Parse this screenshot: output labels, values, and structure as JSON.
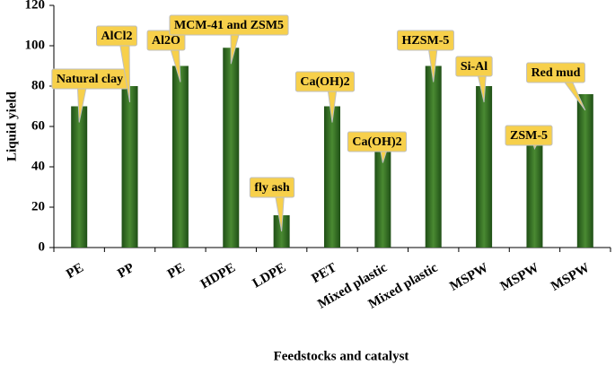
{
  "chart_data": {
    "type": "bar",
    "y_label": "Liquid yield",
    "x_label": "Feedstocks and catalyst",
    "categories": [
      "PE",
      "PP",
      "PE",
      "HDPE",
      "LDPE",
      "PET",
      "Mixed plastic",
      "Mixed plastic",
      "MSPW",
      "MSPW",
      "MSPW"
    ],
    "values": [
      70,
      80,
      90,
      99,
      16,
      70,
      50,
      90,
      80,
      57,
      76
    ],
    "annotations": [
      "Natural clay",
      "AlCl2",
      "Al2O",
      "MCM-41 and ZSM5",
      "fly ash",
      "Ca(OH)2",
      "Ca(OH)2",
      "HZSM-5",
      "Si-Al",
      "ZSM-5",
      "Red mud"
    ],
    "color": "#4a8a32",
    "ylim": [
      0,
      120
    ],
    "yticks": [
      0,
      20,
      40,
      60,
      80,
      100,
      120
    ]
  }
}
